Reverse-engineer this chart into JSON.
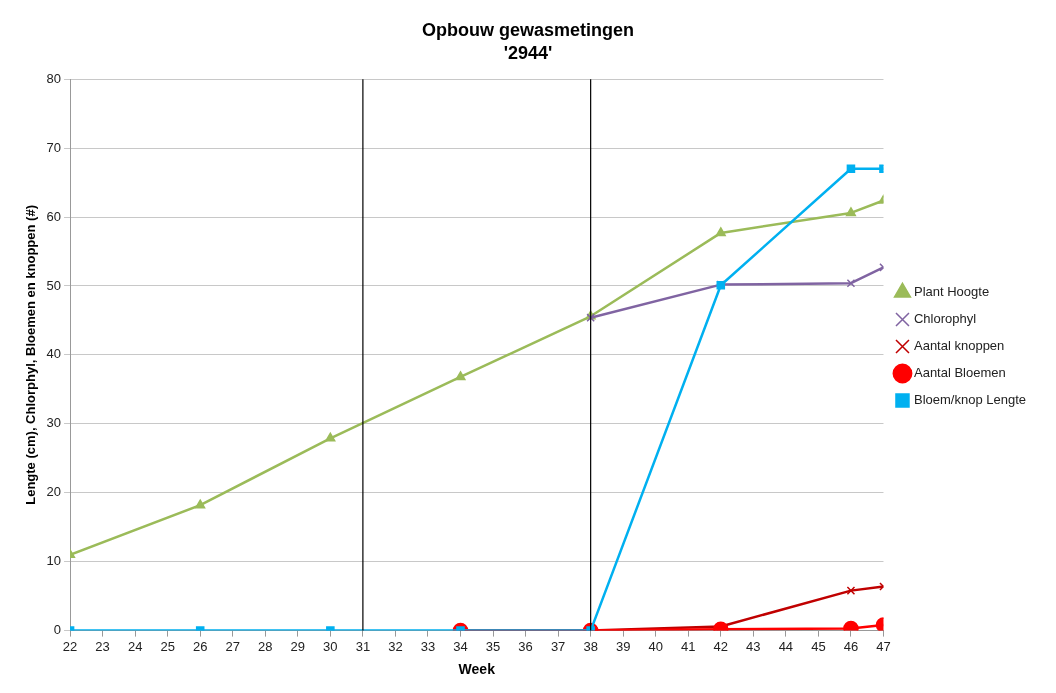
{
  "chart_data": {
    "type": "line",
    "title": "Opbouw gewasmetingen",
    "subtitle": "'2944'",
    "xlabel": "Week",
    "ylabel": "Lengte (cm), Chlorphyl, Bloemen en knoppen (#)",
    "x": [
      22,
      26,
      30,
      34,
      38,
      42,
      46,
      47
    ],
    "series": [
      {
        "name": "Plant Hoogte",
        "color": "#9bbb59",
        "marker": "triangle",
        "values": [
          11,
          18.2,
          27.9,
          36.8,
          45.6,
          57.7,
          60.6,
          62.4
        ]
      },
      {
        "name": "Chlorophyl",
        "color": "#8064a2",
        "marker": "cross",
        "values": [
          null,
          null,
          null,
          null,
          45.4,
          50.2,
          50.4,
          52.7
        ]
      },
      {
        "name": "Aantal knoppen",
        "color": "#c00000",
        "marker": "cross",
        "values": [
          null,
          null,
          null,
          0,
          0,
          0.6,
          5.8,
          6.4
        ]
      },
      {
        "name": "Aantal Bloemen",
        "color": "#ff0000",
        "marker": "circle",
        "values": [
          null,
          null,
          null,
          0,
          0,
          0.2,
          0.3,
          0.8
        ]
      },
      {
        "name": "Bloem/knop Lengte",
        "color": "#00b0f0",
        "marker": "square",
        "values": [
          0,
          0,
          0,
          0,
          0,
          50.1,
          67,
          67
        ]
      }
    ],
    "xlim": [
      22,
      47
    ],
    "xticks": [
      22,
      23,
      24,
      25,
      26,
      27,
      28,
      29,
      30,
      31,
      32,
      33,
      34,
      35,
      36,
      37,
      38,
      39,
      40,
      41,
      42,
      43,
      44,
      45,
      46,
      47
    ],
    "ylim": [
      0,
      80
    ],
    "yticks": [
      0,
      10,
      20,
      30,
      40,
      50,
      60,
      70,
      80
    ],
    "ref_lines": [
      {
        "axis": "x",
        "value": 31,
        "color": "#000000"
      },
      {
        "axis": "x",
        "value": 38,
        "color": "#000000"
      }
    ],
    "grid": "y",
    "legend": "right"
  }
}
